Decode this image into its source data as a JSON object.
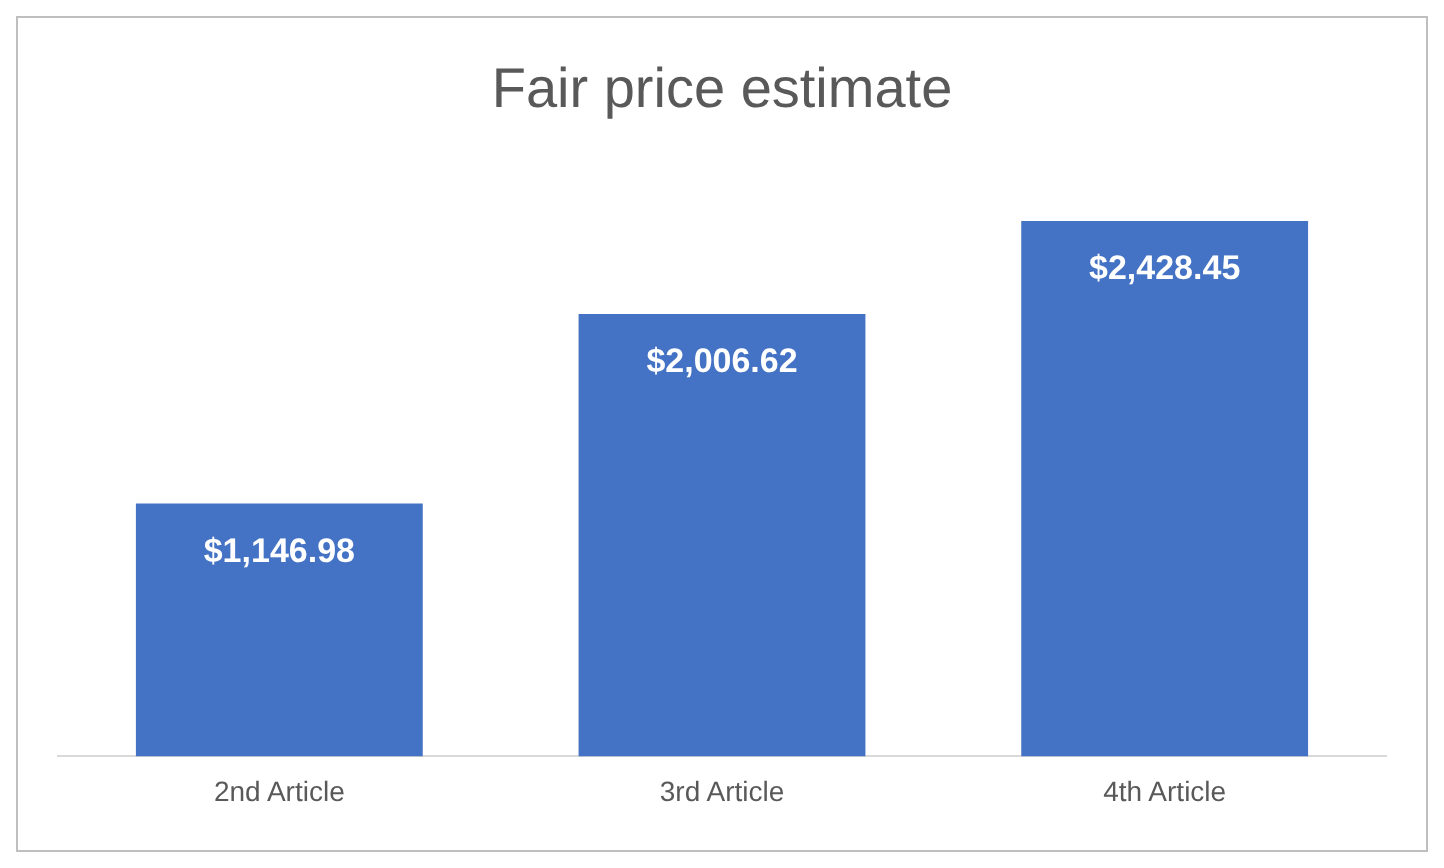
{
  "chart_data": {
    "type": "bar",
    "title": "Fair price estimate",
    "categories": [
      "2nd Article",
      "3rd Article",
      "4th Article"
    ],
    "values": [
      1146.98,
      2006.62,
      2428.45
    ],
    "value_labels": [
      "$1,146.98",
      "$2,006.62",
      "$2,428.45"
    ],
    "color": "#4472c4",
    "grid": false,
    "legend": false
  }
}
